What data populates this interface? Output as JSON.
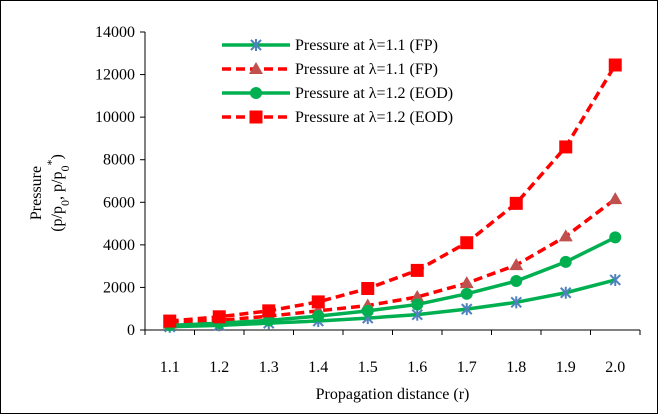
{
  "chart_data": {
    "type": "line",
    "title": "",
    "xlabel": "Propagation distance (r)",
    "ylabel_line1": "Pressure",
    "ylabel_line2": "(p/p0, p/p0*)",
    "x": [
      1.1,
      1.2,
      1.3,
      1.4,
      1.5,
      1.6,
      1.7,
      1.8,
      1.9,
      2.0
    ],
    "x_tick_labels": [
      "1.1",
      "1.2",
      "1.3",
      "1.4",
      "1.5",
      "1.6",
      "1.7",
      "1.8",
      "1.9",
      "2.0"
    ],
    "ylim": [
      0,
      14000
    ],
    "y_ticks": [
      0,
      2000,
      4000,
      6000,
      8000,
      10000,
      12000,
      14000
    ],
    "grid": false,
    "legend_position": "top-center",
    "series": [
      {
        "name": "Pressure at λ=1.1 (FP)",
        "color": "#00b050",
        "marker_color": "#4f81bd",
        "line_style": "solid",
        "marker": "asterisk",
        "values": [
          150,
          220,
          320,
          420,
          560,
          720,
          980,
          1300,
          1750,
          2350
        ]
      },
      {
        "name": "Pressure at λ=1.1 (FP)",
        "color": "#ff0000",
        "marker_color": "#c0504d",
        "line_style": "dashed",
        "marker": "triangle",
        "values": [
          300,
          450,
          650,
          900,
          1150,
          1550,
          2200,
          3050,
          4400,
          6150
        ]
      },
      {
        "name": "Pressure at λ=1.2 (EOD)",
        "color": "#00b050",
        "marker_color": "#00b050",
        "line_style": "solid",
        "marker": "circle",
        "values": [
          220,
          320,
          450,
          650,
          900,
          1200,
          1700,
          2300,
          3200,
          4350
        ]
      },
      {
        "name": "Pressure at λ=1.2 (EOD)",
        "color": "#ff0000",
        "marker_color": "#ff0000",
        "line_style": "dashed",
        "marker": "square",
        "values": [
          420,
          620,
          900,
          1320,
          1950,
          2800,
          4100,
          5950,
          8600,
          12450
        ]
      }
    ]
  }
}
